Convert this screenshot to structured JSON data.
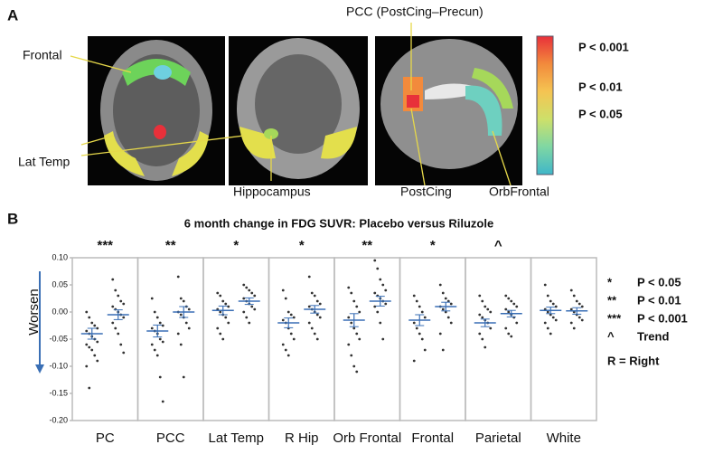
{
  "panel_a": {
    "label": "A",
    "regions": [
      "Frontal",
      "Lat Temp",
      "Hippocampus",
      "PCC (PostCing–Precun)",
      "PostCing",
      "OrbFrontal"
    ],
    "colorbar_colors": [
      "#e8303a",
      "#f28a3c",
      "#f5c452",
      "#cde06a",
      "#7fd7a3",
      "#3fb6c9"
    ],
    "colorbar_labels": [
      "P <  0.001",
      "P  <  0.01",
      "P  <  0.05"
    ]
  },
  "chart_data": {
    "type": "dot",
    "panel_label": "B",
    "title": "6 month change in FDG SUVR: Placebo versus Riluzole",
    "y_label": "Worsen",
    "categories": [
      "PC",
      "PCC",
      "Lat Temp",
      "R Hip",
      "Orb Frontal",
      "Frontal",
      "Parietal",
      "White"
    ],
    "significance": [
      "***",
      "**",
      "*",
      "*",
      "**",
      "*",
      "^",
      null
    ],
    "ylim": [
      -0.2,
      0.1
    ],
    "yticks": [
      {
        "value": 0.1,
        "label": "0.10"
      },
      0.05,
      {
        "value": 0,
        "label": "0.00"
      },
      -0.05,
      {
        "value": -0.1,
        "label": "-0.10"
      },
      -0.15,
      {
        "value": -0.2,
        "label": "-0.20"
      }
    ],
    "point_color": "#333333",
    "mean_color": "#3a6fb5",
    "series": [
      {
        "means": [
          -0.04,
          -0.035,
          0.003,
          -0.02,
          -0.015,
          -0.015,
          -0.02,
          0.003
        ],
        "sems": [
          0.01,
          0.011,
          0.008,
          0.009,
          0.012,
          0.01,
          0.007,
          0.006
        ],
        "points": [
          [
            0.0,
            -0.01,
            -0.02,
            -0.025,
            -0.03,
            -0.035,
            -0.04,
            -0.045,
            -0.05,
            -0.055,
            -0.06,
            -0.065,
            -0.07,
            -0.08,
            -0.09,
            -0.1,
            -0.14
          ],
          [
            0.025,
            0.0,
            -0.01,
            -0.02,
            -0.025,
            -0.03,
            -0.035,
            -0.04,
            -0.05,
            -0.055,
            -0.06,
            -0.07,
            -0.08,
            -0.12,
            -0.165
          ],
          [
            0.035,
            0.03,
            0.02,
            0.015,
            0.01,
            0.005,
            0.0,
            -0.005,
            -0.01,
            -0.02,
            -0.03,
            -0.04,
            -0.05
          ],
          [
            0.04,
            0.025,
            0.0,
            -0.005,
            -0.01,
            -0.015,
            -0.02,
            -0.03,
            -0.04,
            -0.05,
            -0.06,
            -0.07,
            -0.08
          ],
          [
            0.045,
            0.035,
            0.02,
            0.01,
            0.0,
            -0.01,
            -0.02,
            -0.03,
            -0.04,
            -0.05,
            -0.06,
            -0.08,
            -0.1,
            -0.11
          ],
          [
            0.03,
            0.02,
            0.01,
            0.0,
            -0.01,
            -0.02,
            -0.03,
            -0.04,
            -0.05,
            -0.07,
            -0.09
          ],
          [
            0.03,
            0.02,
            0.01,
            0.005,
            0.0,
            -0.005,
            -0.01,
            -0.015,
            -0.02,
            -0.03,
            -0.04,
            -0.05,
            -0.065
          ],
          [
            0.05,
            0.03,
            0.02,
            0.015,
            0.01,
            0.005,
            0.0,
            -0.005,
            -0.01,
            -0.015,
            -0.02,
            -0.03,
            -0.04
          ]
        ]
      },
      {
        "means": [
          -0.005,
          0.0,
          0.02,
          0.005,
          0.02,
          0.01,
          -0.003,
          0.002
        ],
        "sems": [
          0.009,
          0.01,
          0.006,
          0.007,
          0.009,
          0.008,
          0.006,
          0.006
        ],
        "points": [
          [
            0.06,
            0.04,
            0.03,
            0.02,
            0.015,
            0.01,
            0.005,
            0.0,
            -0.005,
            -0.01,
            -0.02,
            -0.03,
            -0.04,
            -0.06,
            -0.075
          ],
          [
            0.065,
            0.025,
            0.02,
            0.01,
            0.005,
            0.0,
            -0.005,
            -0.01,
            -0.02,
            -0.03,
            -0.04,
            -0.06,
            -0.12
          ],
          [
            0.05,
            0.045,
            0.04,
            0.035,
            0.03,
            0.025,
            0.02,
            0.015,
            0.01,
            0.005,
            0.0,
            -0.01,
            -0.02
          ],
          [
            0.065,
            0.035,
            0.03,
            0.02,
            0.015,
            0.01,
            0.005,
            0.0,
            -0.005,
            -0.01,
            -0.02,
            -0.03,
            -0.04,
            -0.05
          ],
          [
            0.095,
            0.08,
            0.06,
            0.05,
            0.04,
            0.035,
            0.03,
            0.025,
            0.02,
            0.015,
            0.01,
            0.0,
            -0.02,
            -0.05
          ],
          [
            0.05,
            0.035,
            0.025,
            0.02,
            0.015,
            0.01,
            0.005,
            0.0,
            -0.01,
            -0.02,
            -0.04,
            -0.07
          ],
          [
            0.03,
            0.025,
            0.02,
            0.015,
            0.01,
            0.005,
            0.0,
            -0.005,
            -0.01,
            -0.02,
            -0.03,
            -0.04,
            -0.045
          ],
          [
            0.04,
            0.03,
            0.02,
            0.015,
            0.01,
            0.005,
            0.0,
            -0.005,
            -0.01,
            -0.015,
            -0.02,
            -0.03
          ]
        ]
      }
    ],
    "legend": [
      {
        "symbol": "*",
        "text": "P  <  0.05"
      },
      {
        "symbol": "**",
        "text": "P  <  0.01"
      },
      {
        "symbol": "***",
        "text": "P  <  0.001"
      },
      {
        "symbol": "^",
        "text": "Trend"
      }
    ],
    "note": "R = Right"
  }
}
